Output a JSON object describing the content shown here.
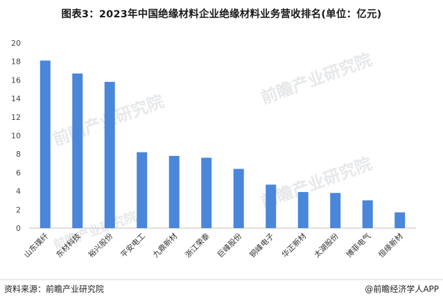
{
  "title": "图表3：2023年中国绝缘材料企业绝缘材料业务营收排名(单位：亿元)",
  "source": "资料来源：前瞻产业研究院",
  "credit": "@前瞻经济学人APP",
  "watermark": "前瞻产业研究院",
  "colors": {
    "bar": "#4a86d9",
    "axis": "#bfbfbf"
  },
  "chart_data": {
    "type": "bar",
    "title": "图表3：2023年中国绝缘材料企业绝缘材料业务营收排名(单位：亿元)",
    "categories": [
      "山东璞纤",
      "东材科技",
      "裕兴股份",
      "平安电工",
      "九鼎新材",
      "浙江荣泰",
      "巨峰股份",
      "铜峰电子",
      "华正新材",
      "太湖股份",
      "博菲电气",
      "恒缘新材"
    ],
    "values": [
      18.1,
      16.7,
      15.8,
      8.2,
      7.8,
      7.6,
      6.4,
      4.7,
      3.9,
      3.8,
      3.0,
      1.7
    ],
    "yticks": [
      0,
      2,
      4,
      6,
      8,
      10,
      12,
      14,
      16,
      18,
      20
    ],
    "ylim": [
      0,
      20
    ],
    "xlabel": "",
    "ylabel": "",
    "grid": false,
    "legend": "none"
  }
}
